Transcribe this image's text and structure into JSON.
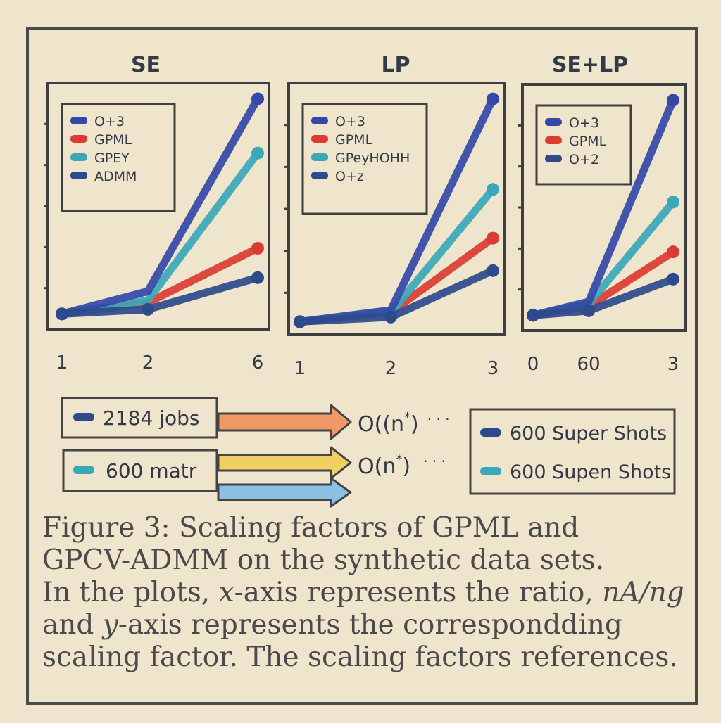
{
  "chart_data": [
    {
      "type": "line",
      "title": "SE",
      "xlabel": "",
      "ylabel": "",
      "x_tick_labels": [
        "1",
        "2",
        "6"
      ],
      "categories": [
        "1",
        "2",
        "6"
      ],
      "ylim": [
        0,
        1
      ],
      "series": [
        {
          "name": "O+3",
          "color": "#3348a8",
          "values": [
            0.03,
            0.13,
            0.98
          ]
        },
        {
          "name": "GPML",
          "color": "#db3c32",
          "values": [
            0.03,
            0.08,
            0.32
          ]
        },
        {
          "name": "GPEY",
          "color": "#3aa8b8",
          "values": [
            0.03,
            0.09,
            0.74
          ]
        },
        {
          "name": "ADMM",
          "color": "#2c4a8c",
          "values": [
            0.03,
            0.05,
            0.19
          ]
        }
      ],
      "legend_position": "top-left"
    },
    {
      "type": "line",
      "title": "LP",
      "xlabel": "",
      "ylabel": "",
      "x_tick_labels": [
        "1",
        "2",
        "3"
      ],
      "categories": [
        "1",
        "2",
        "3"
      ],
      "ylim": [
        0,
        1
      ],
      "series": [
        {
          "name": "O+3",
          "color": "#3348a8",
          "values": [
            0.02,
            0.07,
            0.98
          ]
        },
        {
          "name": "GPML",
          "color": "#db3c32",
          "values": [
            0.02,
            0.06,
            0.38
          ]
        },
        {
          "name": "GPeyHOHH",
          "color": "#3aa8b8",
          "values": [
            0.02,
            0.06,
            0.59
          ]
        },
        {
          "name": "O+z",
          "color": "#2c4a8c",
          "values": [
            0.02,
            0.04,
            0.24
          ]
        }
      ],
      "legend_position": "top-left"
    },
    {
      "type": "line",
      "title": "SE+LP",
      "xlabel": "",
      "ylabel": "",
      "x_tick_labels": [
        "0",
        "60",
        "3"
      ],
      "categories": [
        "0",
        "60",
        "3"
      ],
      "ylim": [
        0,
        1
      ],
      "series": [
        {
          "name": "O+3",
          "color": "#3348a8",
          "values": [
            0.03,
            0.09,
            0.98
          ]
        },
        {
          "name": "GPML",
          "color": "#db3c32",
          "values": [
            0.03,
            0.07,
            0.31
          ]
        },
        {
          "name": "",
          "color": "#3aa8b8",
          "values": [
            0.03,
            0.08,
            0.53
          ]
        },
        {
          "name": "O+2",
          "color": "#2c4a8c",
          "values": [
            0.03,
            0.05,
            0.19
          ]
        }
      ],
      "legend_position": "top-left"
    }
  ],
  "flow": {
    "inputs": [
      {
        "label": "2184 jobs",
        "swatch": "#2c4a8c",
        "arrow_color": "#ee9966"
      },
      {
        "label": "600 matr",
        "swatch": "#3aa8b8",
        "arrow_color": "#f0d060"
      }
    ],
    "extra_arrow_color": "#8ec0e4",
    "outputs": [
      {
        "base": "O((n",
        "sup": "*",
        "tail": ")",
        "dots": "· · ·"
      },
      {
        "base": "O(n",
        "sup": "*",
        "tail": ")",
        "dots": "· · ·"
      }
    ],
    "legend": [
      {
        "label": "600 Super Shots",
        "swatch": "#2c4a8c"
      },
      {
        "label": "600 Supen Shots",
        "swatch": "#3aa8b8"
      }
    ]
  },
  "caption": {
    "line1": "Figure 3: Scaling factors of GPML and",
    "line2": "GPCV-ADMM on the synthetic data sets.",
    "line3_a": "In the plots, ",
    "line3_x": "x",
    "line3_b": "-axis represents the ratio, ",
    "line3_ratio": "nA/ng",
    "line4_y": "y",
    "line4_b": "-axis represents the correspondding",
    "line4_a": "and ",
    "line5": "scaling factor. The scaling factors references."
  }
}
